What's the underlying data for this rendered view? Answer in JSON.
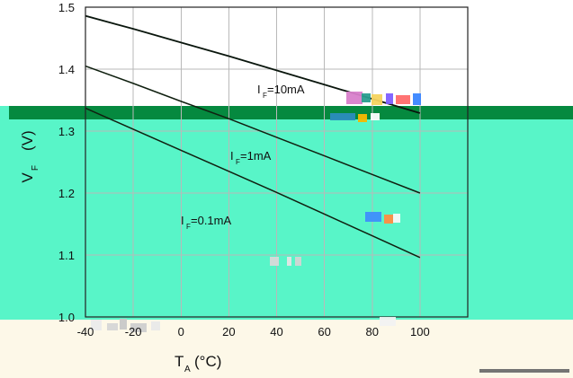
{
  "chart_data": {
    "type": "line",
    "title": "",
    "xlabel_main": "T",
    "xlabel_sub": "A",
    "xlabel_unit": "(°C)",
    "ylabel_main": "V",
    "ylabel_sub": "F",
    "ylabel_unit": "(V)",
    "xlim": [
      -40,
      120
    ],
    "ylim": [
      1.0,
      1.5
    ],
    "x_ticks": [
      -40,
      -20,
      0,
      20,
      40,
      60,
      80,
      100
    ],
    "x_tick_labels": [
      "-40",
      "-20",
      "0",
      "20",
      "40",
      "60",
      "80",
      "100"
    ],
    "y_ticks": [
      1.0,
      1.1,
      1.2,
      1.3,
      1.4,
      1.5
    ],
    "y_tick_labels": [
      "1.0",
      "1.1",
      "1.2",
      "1.3",
      "1.4",
      "1.5"
    ],
    "grid": true,
    "series": [
      {
        "name": "IF=10mA",
        "label_main": "I",
        "label_sub": "F",
        "label_rest": "=10mA",
        "x": [
          -40,
          -20,
          0,
          20,
          40,
          60,
          80,
          100
        ],
        "y": [
          1.486,
          1.465,
          1.443,
          1.421,
          1.398,
          1.375,
          1.352,
          1.329
        ]
      },
      {
        "name": "IF=1mA",
        "label_main": "I",
        "label_sub": "F",
        "label_rest": "=1mA",
        "x": [
          -40,
          -20,
          0,
          20,
          40,
          60,
          80,
          100
        ],
        "y": [
          1.405,
          1.377,
          1.348,
          1.32,
          1.29,
          1.26,
          1.23,
          1.2
        ]
      },
      {
        "name": "IF=0.1mA",
        "label_main": "I",
        "label_sub": "F",
        "label_rest": "=0.1mA",
        "x": [
          -40,
          -20,
          0,
          20,
          40,
          60,
          80,
          100
        ],
        "y": [
          1.337,
          1.303,
          1.269,
          1.235,
          1.201,
          1.166,
          1.131,
          1.096
        ]
      }
    ]
  },
  "overlay": {
    "light_green": "#58f5c8",
    "dark_green": "#05893f",
    "cream": "#fdf8e8",
    "line_dark": "#102010",
    "grid_color": "#b9b9b9"
  }
}
